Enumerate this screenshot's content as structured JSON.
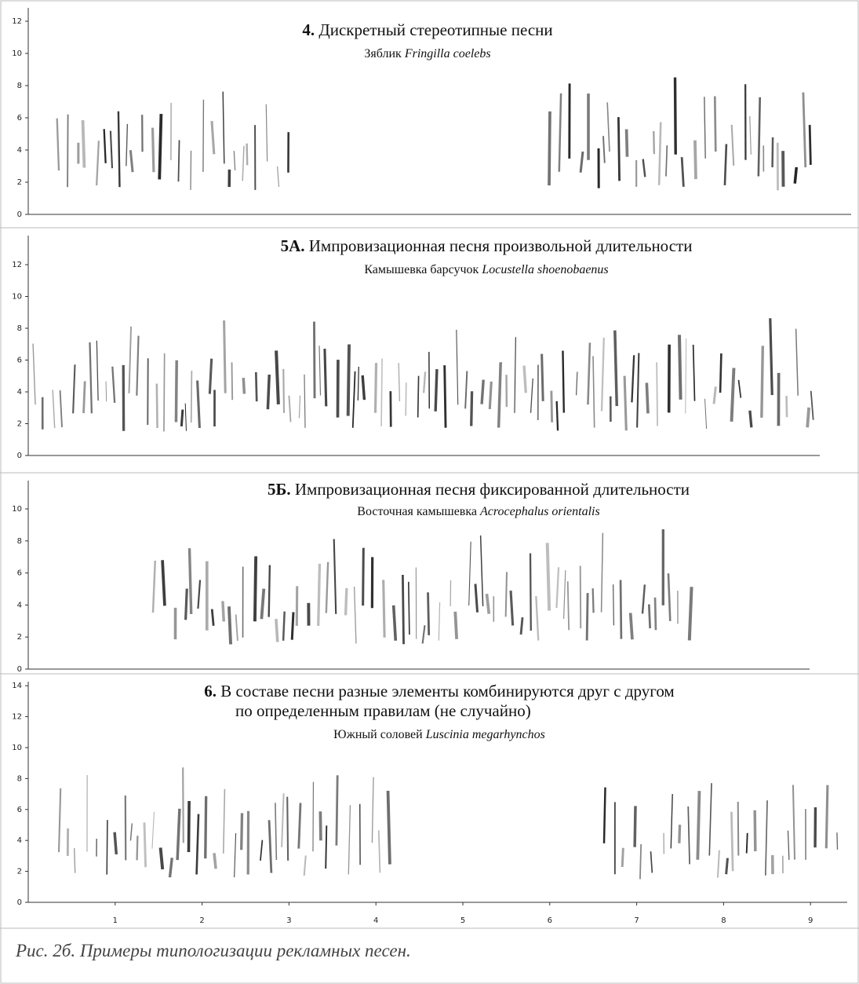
{
  "panels": [
    {
      "number": "4.",
      "title": [
        "Дискретный стереотипные песни"
      ],
      "species_ru": "Зяблик",
      "species_lat": "Fringilla coelebs",
      "yticks": [
        0,
        2,
        4,
        6,
        8,
        10,
        12
      ]
    },
    {
      "number": "5А.",
      "title": [
        "Импровизационная песня произвольной длительности"
      ],
      "species_ru": "Камышевка барсучок",
      "species_lat": "Locustella shoenobaenus",
      "yticks": [
        0,
        2,
        4,
        6,
        8,
        10,
        12
      ]
    },
    {
      "number": "5Б.",
      "title": [
        "Импровизационная песня фиксированной длительности"
      ],
      "species_ru": "Восточная камышевка",
      "species_lat": "Acrocephalus orientalis",
      "yticks": [
        0,
        2,
        4,
        6,
        8,
        10
      ]
    },
    {
      "number": "6.",
      "title": [
        "В составе песни разные элементы комбинируются друг с другом",
        "по определенным правилам (не случайно)"
      ],
      "species_ru": "Южный соловей",
      "species_lat": "Luscinia megarhynchos",
      "yticks": [
        0,
        2,
        4,
        6,
        8,
        10,
        12,
        14
      ]
    }
  ],
  "xticks": [
    1,
    2,
    3,
    4,
    5,
    6,
    7,
    8,
    9
  ],
  "caption": "Рис. 2б. Примеры типологизации рекламных песен."
}
